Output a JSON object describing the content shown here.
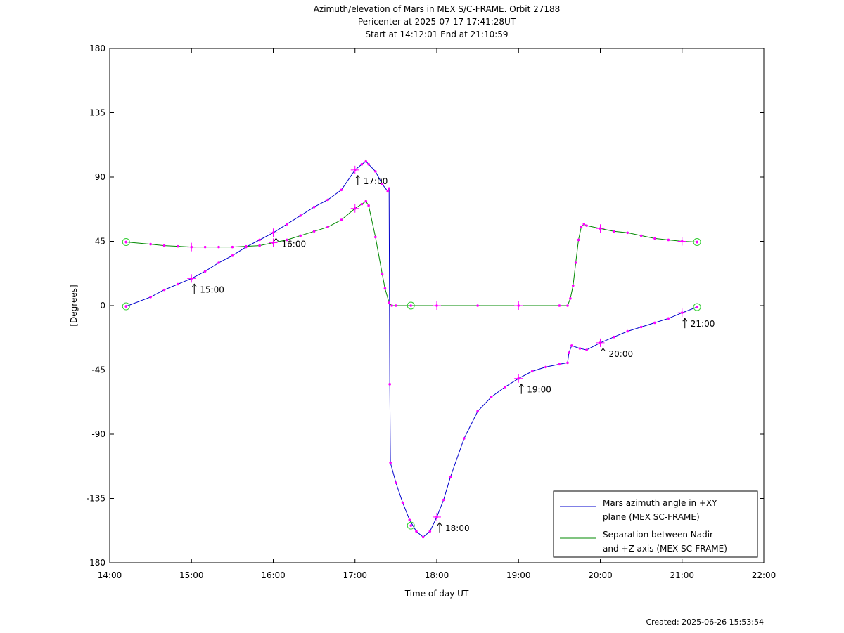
{
  "chart_data": {
    "type": "line",
    "title_lines": [
      "Azimuth/elevation of Mars in MEX S/C-FRAME.  Orbit 27188",
      "Pericenter at 2025-07-17 17:41:28UT",
      "Start at 14:12:01 End at 21:10:59"
    ],
    "xlabel": "Time of day UT",
    "ylabel": "[Degrees]",
    "xlim": [
      "14:00",
      "22:00"
    ],
    "ylim": [
      -180,
      180
    ],
    "x_ticks": [
      "14:00",
      "15:00",
      "16:00",
      "17:00",
      "18:00",
      "19:00",
      "20:00",
      "21:00",
      "22:00"
    ],
    "y_ticks": [
      180,
      135,
      90,
      45,
      0,
      -45,
      -90,
      -135,
      -180
    ],
    "grid": false,
    "legend_position": "bottom-right",
    "colors": {
      "azimuth": "#0000cc",
      "separation": "#008800",
      "markers": "#ff00ff",
      "circles": "#33cc33"
    },
    "series": [
      {
        "name": "Mars azimuth angle in +XY plane (MEX SC-FRAME)",
        "legend_lines": [
          "Mars azimuth angle in +XY",
          "plane (MEX SC-FRAME)"
        ],
        "color": "#0000cc",
        "points": [
          [
            "14:12",
            -0.5
          ],
          [
            "14:30",
            6
          ],
          [
            "14:40",
            11
          ],
          [
            "14:50",
            15
          ],
          [
            "15:00",
            19
          ],
          [
            "15:10",
            24
          ],
          [
            "15:20",
            30
          ],
          [
            "15:30",
            35
          ],
          [
            "15:40",
            41
          ],
          [
            "15:50",
            46
          ],
          [
            "16:00",
            51
          ],
          [
            "16:10",
            57
          ],
          [
            "16:20",
            63
          ],
          [
            "16:30",
            69
          ],
          [
            "16:40",
            74
          ],
          [
            "16:50",
            81
          ],
          [
            "17:00",
            95
          ],
          [
            "17:05",
            99
          ],
          [
            "17:08",
            101
          ],
          [
            "17:10",
            99
          ],
          [
            "17:15",
            94
          ],
          [
            "17:20",
            85
          ],
          [
            "17:24",
            80
          ],
          [
            "17:25",
            82
          ],
          [
            "17:25.5",
            -55
          ],
          [
            "17:26",
            -110
          ],
          [
            "17:30",
            -124
          ],
          [
            "17:35",
            -138
          ],
          [
            "17:40",
            -150
          ],
          [
            "17:45",
            -158
          ],
          [
            "17:50",
            -162
          ],
          [
            "17:55",
            -158
          ],
          [
            "18:00",
            -148
          ],
          [
            "18:05",
            -136
          ],
          [
            "18:10",
            -120
          ],
          [
            "18:20",
            -93
          ],
          [
            "18:30",
            -74
          ],
          [
            "18:40",
            -64
          ],
          [
            "18:50",
            -57
          ],
          [
            "19:00",
            -51
          ],
          [
            "19:10",
            -46
          ],
          [
            "19:20",
            -43
          ],
          [
            "19:30",
            -41
          ],
          [
            "19:36",
            -40
          ],
          [
            "19:37",
            -33
          ],
          [
            "19:39",
            -28
          ],
          [
            "19:45",
            -30
          ],
          [
            "19:50",
            -31
          ],
          [
            "20:00",
            -26
          ],
          [
            "20:10",
            -22
          ],
          [
            "20:20",
            -18
          ],
          [
            "20:30",
            -15
          ],
          [
            "20:40",
            -12
          ],
          [
            "20:50",
            -9
          ],
          [
            "21:00",
            -5
          ],
          [
            "21:11",
            -1
          ]
        ]
      },
      {
        "name": "Separation between Nadir and +Z axis (MEX SC-FRAME)",
        "legend_lines": [
          "Separation between Nadir",
          "and +Z axis (MEX SC-FRAME)"
        ],
        "color": "#008800",
        "points": [
          [
            "14:12",
            44.5
          ],
          [
            "14:30",
            43
          ],
          [
            "14:40",
            42
          ],
          [
            "14:50",
            41.5
          ],
          [
            "15:00",
            41
          ],
          [
            "15:10",
            41
          ],
          [
            "15:20",
            41
          ],
          [
            "15:30",
            41
          ],
          [
            "15:40",
            41.5
          ],
          [
            "15:50",
            42
          ],
          [
            "16:00",
            44
          ],
          [
            "16:10",
            46
          ],
          [
            "16:20",
            49
          ],
          [
            "16:30",
            52
          ],
          [
            "16:40",
            55
          ],
          [
            "16:50",
            60
          ],
          [
            "17:00",
            68
          ],
          [
            "17:05",
            71
          ],
          [
            "17:08",
            73
          ],
          [
            "17:10",
            70
          ],
          [
            "17:15",
            48
          ],
          [
            "17:20",
            22
          ],
          [
            "17:22",
            12
          ],
          [
            "17:25",
            2
          ],
          [
            "17:27",
            0
          ],
          [
            "17:30",
            0
          ],
          [
            "18:00",
            0
          ],
          [
            "18:30",
            0
          ],
          [
            "19:00",
            0
          ],
          [
            "19:30",
            0
          ],
          [
            "19:36",
            0
          ],
          [
            "19:38",
            5
          ],
          [
            "19:40",
            14
          ],
          [
            "19:42",
            30
          ],
          [
            "19:44",
            46
          ],
          [
            "19:46",
            55
          ],
          [
            "19:48",
            57
          ],
          [
            "19:50",
            56
          ],
          [
            "20:00",
            54
          ],
          [
            "20:10",
            52
          ],
          [
            "20:20",
            51
          ],
          [
            "20:30",
            49
          ],
          [
            "20:40",
            47
          ],
          [
            "20:50",
            46
          ],
          [
            "21:00",
            45
          ],
          [
            "21:11",
            44.5
          ]
        ]
      }
    ],
    "annotations": [
      {
        "label": "15:00",
        "x": "15:00",
        "y": 19,
        "side": "below"
      },
      {
        "label": "16:00",
        "x": "16:00",
        "y": 51,
        "side": "below"
      },
      {
        "label": "17:00",
        "x": "17:00",
        "y": 95,
        "side": "below"
      },
      {
        "label": "18:00",
        "x": "18:00",
        "y": -148,
        "side": "below"
      },
      {
        "label": "19:00",
        "x": "19:00",
        "y": -51,
        "side": "below"
      },
      {
        "label": "20:00",
        "x": "20:00",
        "y": -26,
        "side": "below"
      },
      {
        "label": "21:00",
        "x": "21:00",
        "y": -5,
        "side": "below"
      }
    ],
    "circle_markers": [
      {
        "x": "14:12",
        "y": 44.5
      },
      {
        "x": "14:12",
        "y": -0.5
      },
      {
        "x": "17:41",
        "y": 0
      },
      {
        "x": "17:41",
        "y": -154
      },
      {
        "x": "21:11",
        "y": 44.5
      },
      {
        "x": "21:11",
        "y": -1
      }
    ],
    "plus_markers": [
      {
        "x": "15:00",
        "y": 19
      },
      {
        "x": "16:00",
        "y": 51
      },
      {
        "x": "17:00",
        "y": 95
      },
      {
        "x": "18:00",
        "y": -148
      },
      {
        "x": "19:00",
        "y": -51
      },
      {
        "x": "20:00",
        "y": -26
      },
      {
        "x": "21:00",
        "y": -5
      },
      {
        "x": "15:00",
        "y": 41
      },
      {
        "x": "16:00",
        "y": 44
      },
      {
        "x": "17:00",
        "y": 68
      },
      {
        "x": "18:00",
        "y": 0
      },
      {
        "x": "19:00",
        "y": 0
      },
      {
        "x": "20:00",
        "y": 54
      },
      {
        "x": "21:00",
        "y": 45
      }
    ]
  },
  "footer": {
    "created": "Created: 2025-06-26 15:53:54"
  }
}
